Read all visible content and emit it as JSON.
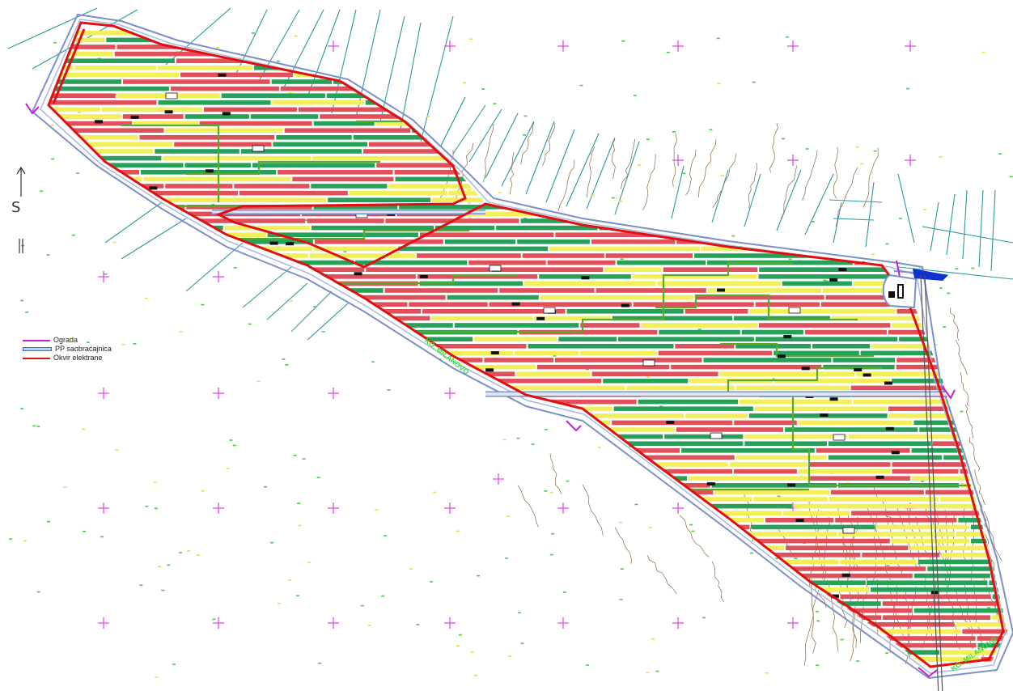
{
  "north": {
    "letter": "S"
  },
  "legend": [
    {
      "label": "Ograda",
      "color": "#c020d8",
      "style": "line"
    },
    {
      "label": "PP saobraćajnica",
      "color": "#4f6fa8",
      "fill": "#a8d8f0",
      "style": "road"
    },
    {
      "label": "Okvir elektrane",
      "color": "#e01010",
      "style": "line"
    }
  ],
  "map_labels": {
    "cadastral_left": "KO. MILANOVO",
    "cadastral_right": "KO. MILANOVO"
  },
  "colors": {
    "panel_red": "#e0505a",
    "panel_green": "#27a05a",
    "panel_yellow": "#f2ef5a",
    "boundary": "#e01010",
    "road": "#6a7fc0",
    "grid_cross": "#e040e0",
    "parcel_line": "#2a9a9a",
    "contour": "#8a6a40",
    "zone_line": "#5aa830"
  }
}
